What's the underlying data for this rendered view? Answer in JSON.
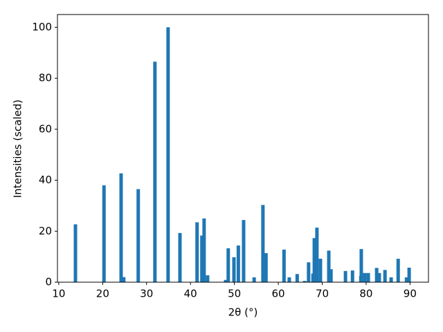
{
  "chart_data": {
    "type": "bar",
    "xlabel": "2θ (°)",
    "ylabel": "Intensities (scaled)",
    "color": "#1f77b4",
    "x": [
      13.8,
      20.3,
      24.2,
      24.8,
      28.1,
      31.9,
      34.9,
      37.6,
      41.5,
      42.6,
      43.1,
      43.9,
      48.0,
      48.6,
      49.9,
      50.9,
      52.1,
      54.5,
      56.5,
      57.2,
      61.3,
      62.5,
      64.3,
      66.0,
      66.9,
      67.9,
      68.2,
      68.8,
      69.6,
      71.5,
      72.0,
      75.3,
      76.9,
      78.8,
      78.9,
      79.7,
      80.5,
      82.4,
      83.0,
      84.3,
      85.7,
      87.3,
      89.2,
      89.8
    ],
    "values": [
      22.7,
      38.0,
      42.7,
      2.0,
      36.5,
      86.5,
      100,
      19.3,
      23.5,
      18.3,
      25.0,
      2.7,
      0.9,
      13.3,
      9.8,
      14.4,
      24.4,
      1.9,
      30.3,
      11.4,
      12.8,
      1.9,
      3.2,
      0.5,
      7.8,
      3.4,
      17.3,
      21.4,
      9.2,
      12.4,
      5.1,
      4.4,
      4.6,
      2.5,
      13.0,
      3.6,
      3.6,
      5.6,
      3.6,
      4.8,
      1.9,
      9.2,
      1.9,
      5.7
    ],
    "xlim": [
      9.7,
      94.2
    ],
    "xticks": [
      10,
      20,
      30,
      40,
      50,
      60,
      70,
      80,
      90
    ],
    "ylim": [
      0,
      105
    ],
    "yticks": [
      0,
      20,
      40,
      60,
      80,
      100
    ]
  }
}
